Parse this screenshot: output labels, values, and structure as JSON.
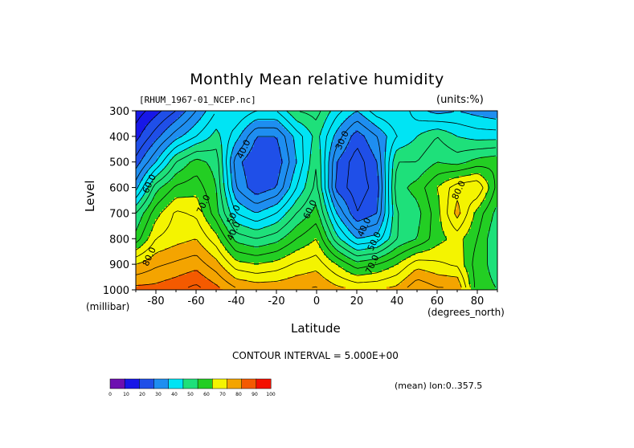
{
  "chart_data": {
    "type": "contour",
    "title": "Monthly Mean relative humidity",
    "subtitle_left": "[RHUM_1967-01_NCEP.nc]",
    "units": "(units:%)",
    "xlabel": "Latitude",
    "x_units_label": "(degrees_north)",
    "ylabel": "Level",
    "y_units_label": "(millibar)",
    "contour_interval_text": "CONTOUR INTERVAL = 5.000E+00",
    "mean_text": "(mean) lon:0..357.5",
    "xlim": [
      -90,
      90
    ],
    "ylim": [
      1000,
      300
    ],
    "x_ticks": [
      -80,
      -60,
      -40,
      -20,
      0,
      20,
      40,
      60,
      80
    ],
    "x_tick_labels": [
      "-80",
      "-60",
      "-40",
      "-20",
      "0",
      "20",
      "40",
      "60",
      "80"
    ],
    "y_ticks": [
      300,
      400,
      500,
      600,
      700,
      800,
      900,
      1000
    ],
    "y_tick_labels": [
      "300",
      "400",
      "500",
      "600",
      "700",
      "800",
      "900",
      "1000"
    ],
    "contour_labels": [
      {
        "text": "60.0",
        "lat": -82,
        "level": 590
      },
      {
        "text": "40.0",
        "lat": -35,
        "level": 455
      },
      {
        "text": "70.0",
        "lat": -55,
        "level": 670
      },
      {
        "text": "50.0",
        "lat": -40,
        "level": 710
      },
      {
        "text": "40.0",
        "lat": -40,
        "level": 775
      },
      {
        "text": "80.0",
        "lat": -82,
        "level": 875
      },
      {
        "text": "30.0",
        "lat": 14,
        "level": 420
      },
      {
        "text": "60.0",
        "lat": -2,
        "level": 690
      },
      {
        "text": "40.0",
        "lat": 25,
        "level": 760
      },
      {
        "text": "50.0",
        "lat": 30,
        "level": 815
      },
      {
        "text": "70.0",
        "lat": 29,
        "level": 905
      },
      {
        "text": "80.0",
        "lat": 72,
        "level": 615
      }
    ],
    "x": [
      -90,
      -80,
      -70,
      -60,
      -50,
      -40,
      -30,
      -20,
      -10,
      0,
      10,
      20,
      30,
      40,
      50,
      60,
      70,
      80,
      90
    ],
    "levels": [
      300,
      400,
      500,
      600,
      700,
      800,
      900,
      1000
    ],
    "z": [
      [
        12,
        18,
        25,
        35,
        45,
        50,
        45,
        45,
        55,
        57,
        47,
        40,
        48,
        50,
        42,
        38,
        40,
        38,
        36
      ],
      [
        18,
        28,
        38,
        45,
        52,
        42,
        30,
        30,
        42,
        52,
        38,
        27,
        35,
        45,
        50,
        55,
        50,
        48,
        48
      ],
      [
        27,
        40,
        55,
        62,
        58,
        32,
        25,
        26,
        40,
        55,
        30,
        22,
        30,
        55,
        55,
        60,
        58,
        62,
        64
      ],
      [
        38,
        58,
        66,
        68,
        60,
        35,
        26,
        30,
        45,
        57,
        28,
        22,
        27,
        58,
        62,
        70,
        78,
        80,
        63
      ],
      [
        55,
        68,
        76,
        74,
        62,
        45,
        40,
        45,
        55,
        62,
        40,
        25,
        30,
        55,
        58,
        68,
        82,
        68,
        58
      ],
      [
        62,
        75,
        78,
        80,
        72,
        58,
        55,
        58,
        65,
        70,
        52,
        40,
        42,
        55,
        60,
        68,
        72,
        65,
        55
      ],
      [
        80,
        84,
        86,
        88,
        82,
        72,
        70,
        72,
        76,
        78,
        70,
        62,
        65,
        70,
        78,
        76,
        74,
        62,
        58
      ],
      [
        92,
        92,
        94,
        97,
        92,
        86,
        84,
        84,
        85,
        86,
        82,
        80,
        80,
        82,
        90,
        86,
        86,
        62,
        60
      ]
    ],
    "colorbar": {
      "ticks": [
        "0",
        "10",
        "20",
        "30",
        "40",
        "50",
        "60",
        "70",
        "80",
        "90",
        "100"
      ],
      "colors": [
        "#6d0fb0",
        "#1717e8",
        "#1f4fe8",
        "#1e8ef0",
        "#00e4f4",
        "#1ee07a",
        "#23ce23",
        "#f4f400",
        "#f4a400",
        "#f45a00",
        "#f41000"
      ]
    }
  }
}
